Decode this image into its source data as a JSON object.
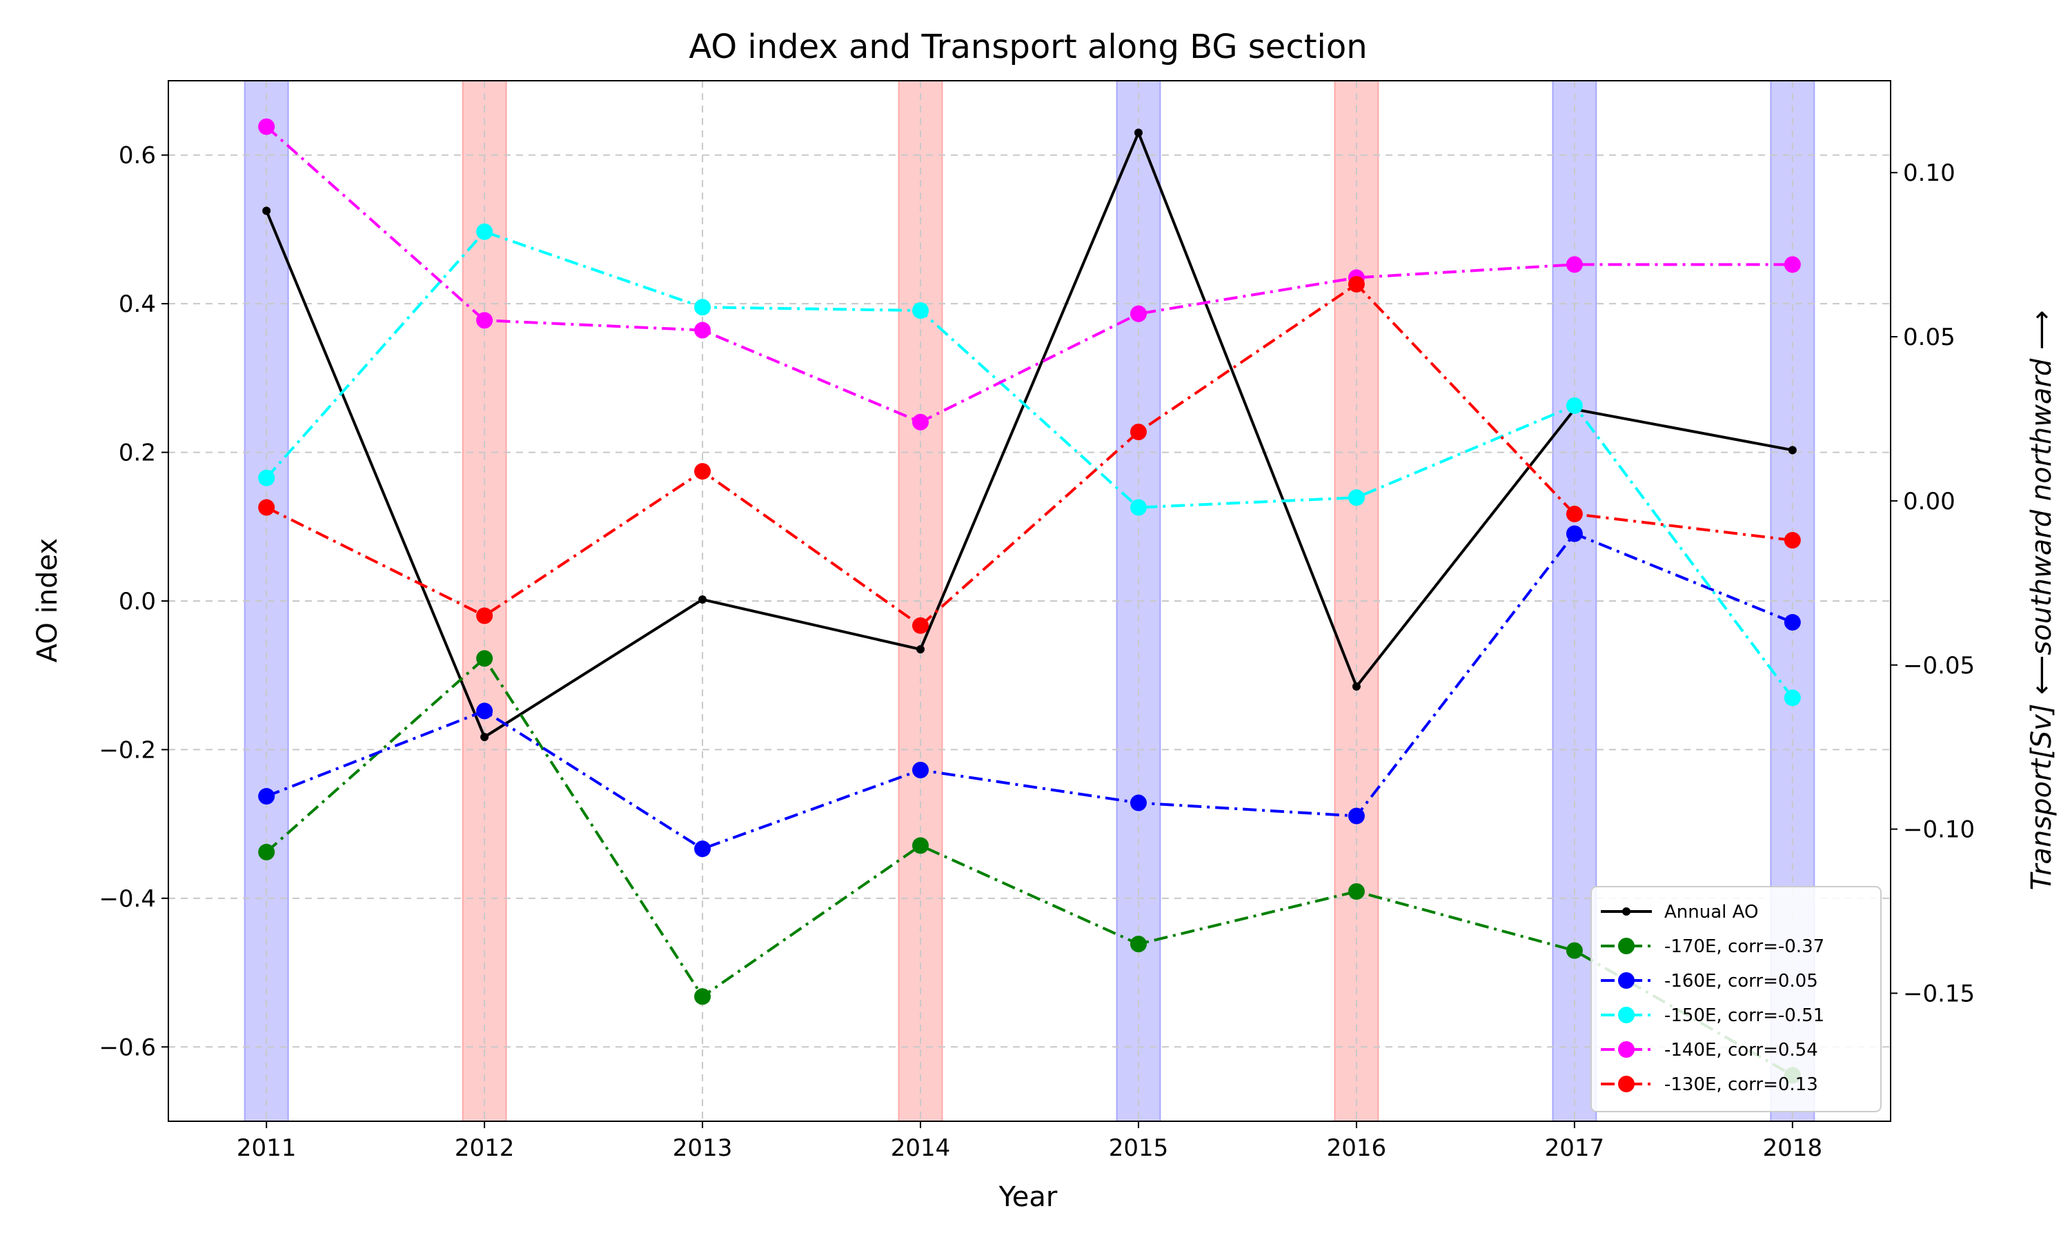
{
  "chart_data": {
    "type": "line",
    "title": "AO index and Transport along BG section",
    "xlabel": "Year",
    "ylabel": "AO index",
    "ylabel_right": "Transport[Sv]  ⟵southward northward ⟶",
    "x": [
      2011,
      2012,
      2013,
      2014,
      2015,
      2016,
      2017,
      2018
    ],
    "xlim": [
      2010.55,
      2018.45
    ],
    "ylim": [
      -0.7,
      0.7
    ],
    "ylim_right": [
      -0.189,
      0.128
    ],
    "yticks": [
      -0.6,
      -0.4,
      -0.2,
      0.0,
      0.2,
      0.4,
      0.6
    ],
    "yticks_right": [
      -0.15,
      -0.1,
      -0.05,
      0.0,
      0.05,
      0.1
    ],
    "grid": true,
    "legend_position": "lower-right",
    "highlight_bands": [
      {
        "x": 2011,
        "type": "positive",
        "color": "#0000ff"
      },
      {
        "x": 2012,
        "type": "negative",
        "color": "#ff0000"
      },
      {
        "x": 2014,
        "type": "negative",
        "color": "#ff0000"
      },
      {
        "x": 2015,
        "type": "positive",
        "color": "#0000ff"
      },
      {
        "x": 2016,
        "type": "negative",
        "color": "#ff0000"
      },
      {
        "x": 2017,
        "type": "positive",
        "color": "#0000ff"
      },
      {
        "x": 2018,
        "type": "positive",
        "color": "#0000ff"
      }
    ],
    "series": [
      {
        "name": "Annual AO",
        "axis": "left",
        "color": "#000000",
        "style": "solid",
        "marker": "small",
        "values": [
          0.525,
          -0.183,
          0.002,
          -0.065,
          0.63,
          -0.115,
          0.258,
          0.203
        ]
      },
      {
        "name": "-170E, corr=-0.37",
        "axis": "right",
        "color": "#008000",
        "style": "dashdot",
        "marker": "large",
        "values": [
          -0.107,
          -0.048,
          -0.151,
          -0.105,
          -0.135,
          -0.119,
          -0.137,
          -0.175
        ]
      },
      {
        "name": "-160E, corr=0.05",
        "axis": "right",
        "color": "#0000ff",
        "style": "dashdot",
        "marker": "large",
        "values": [
          -0.09,
          -0.064,
          -0.106,
          -0.082,
          -0.092,
          -0.096,
          -0.01,
          -0.037
        ]
      },
      {
        "name": "-150E, corr=-0.51",
        "axis": "right",
        "color": "#00ffff",
        "style": "dashdot",
        "marker": "large",
        "values": [
          0.007,
          0.082,
          0.059,
          0.058,
          -0.002,
          0.001,
          0.029,
          -0.06
        ]
      },
      {
        "name": "-140E, corr=0.54",
        "axis": "right",
        "color": "#ff00ff",
        "style": "dashdot",
        "marker": "large",
        "values": [
          0.114,
          0.055,
          0.052,
          0.024,
          0.057,
          0.068,
          0.072,
          0.072
        ]
      },
      {
        "name": "-130E, corr=0.13",
        "axis": "right",
        "color": "#ff0000",
        "style": "dashdot",
        "marker": "large",
        "values": [
          -0.002,
          -0.035,
          0.009,
          -0.038,
          0.021,
          0.066,
          -0.004,
          -0.012
        ]
      }
    ]
  }
}
